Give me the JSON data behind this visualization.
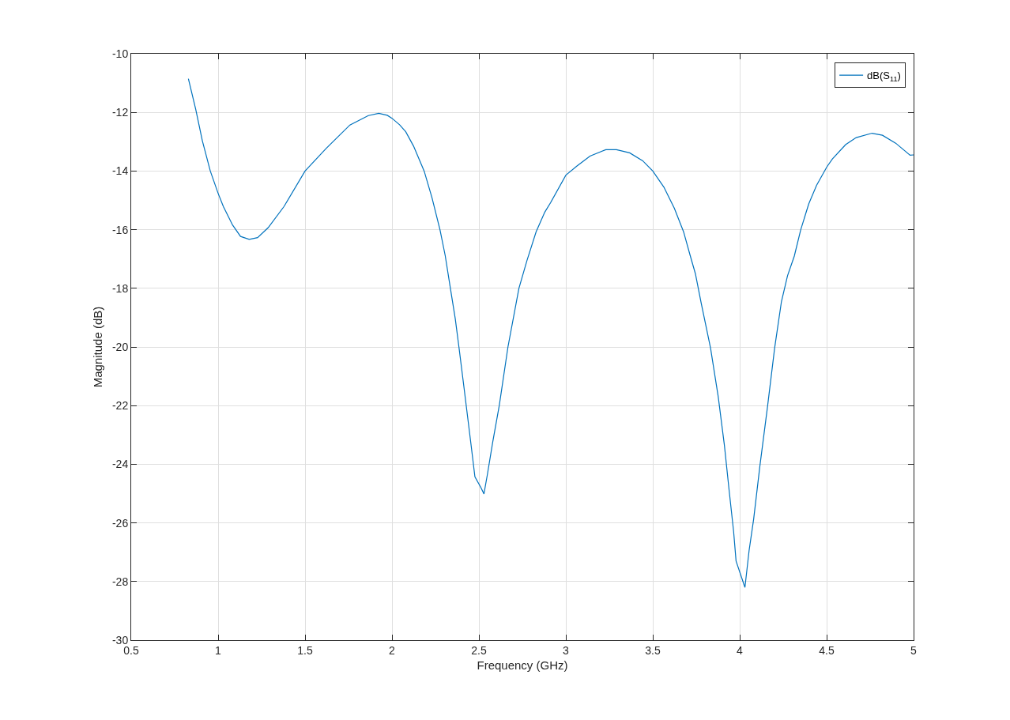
{
  "chart_data": {
    "type": "line",
    "xlabel": "Frequency (GHz)",
    "ylabel": "Magnitude (dB)",
    "x": [
      0.829,
      0.871,
      0.909,
      0.955,
      1.0,
      1.03,
      1.083,
      1.129,
      1.179,
      1.227,
      1.288,
      1.379,
      1.5,
      1.621,
      1.758,
      1.864,
      1.924,
      1.973,
      2.0,
      2.045,
      2.079,
      2.124,
      2.185,
      2.23,
      2.276,
      2.306,
      2.336,
      2.364,
      2.385,
      2.412,
      2.427,
      2.455,
      2.477,
      2.511,
      2.529,
      2.549,
      2.579,
      2.617,
      2.667,
      2.73,
      2.776,
      2.829,
      2.879,
      2.912,
      3.0,
      3.064,
      3.139,
      3.23,
      3.291,
      3.367,
      3.442,
      3.5,
      3.564,
      3.624,
      3.677,
      3.715,
      3.745,
      3.779,
      3.832,
      3.876,
      3.912,
      3.938,
      3.965,
      3.979,
      4.03,
      4.054,
      4.08,
      4.116,
      4.16,
      4.201,
      4.24,
      4.275,
      4.314,
      4.351,
      4.397,
      4.442,
      4.501,
      4.533,
      4.609,
      4.67,
      4.761,
      4.821,
      4.897,
      4.98,
      5.0
    ],
    "series": [
      {
        "name": "dB(S$_{11}$)",
        "color": "#0072bd",
        "values": [
          -10.85,
          -11.89,
          -12.96,
          -14.0,
          -14.76,
          -15.21,
          -15.84,
          -16.23,
          -16.33,
          -16.27,
          -15.93,
          -15.21,
          -14.0,
          -13.23,
          -12.43,
          -12.11,
          -12.03,
          -12.1,
          -12.2,
          -12.43,
          -12.66,
          -13.15,
          -14.0,
          -14.91,
          -16.0,
          -16.88,
          -18.0,
          -19.04,
          -20.0,
          -21.28,
          -22.0,
          -23.35,
          -24.43,
          -24.79,
          -25.01,
          -24.34,
          -23.26,
          -22.0,
          -20.0,
          -18.0,
          -17.06,
          -16.07,
          -15.4,
          -15.08,
          -14.14,
          -13.83,
          -13.49,
          -13.27,
          -13.27,
          -13.38,
          -13.65,
          -14.0,
          -14.55,
          -15.27,
          -16.07,
          -16.88,
          -17.5,
          -18.52,
          -20.03,
          -21.68,
          -23.36,
          -24.83,
          -26.3,
          -27.3,
          -28.2,
          -26.94,
          -25.88,
          -24.06,
          -22.03,
          -20.03,
          -18.45,
          -17.57,
          -16.9,
          -16.0,
          -15.12,
          -14.49,
          -13.86,
          -13.59,
          -13.1,
          -12.86,
          -12.71,
          -12.78,
          -13.05,
          -13.46,
          -13.45
        ]
      }
    ],
    "xlim": [
      0.5,
      5
    ],
    "xticks": [
      0.5,
      1,
      1.5,
      2,
      2.5,
      3,
      3.5,
      4,
      4.5,
      5
    ],
    "ylim": [
      -30,
      -10
    ],
    "yticks": [
      -30,
      -28,
      -26,
      -24,
      -22,
      -20,
      -18,
      -16,
      -14,
      -12,
      -10
    ],
    "grid": true,
    "legend": "top right",
    "line_style": "solid",
    "marker": "none"
  }
}
